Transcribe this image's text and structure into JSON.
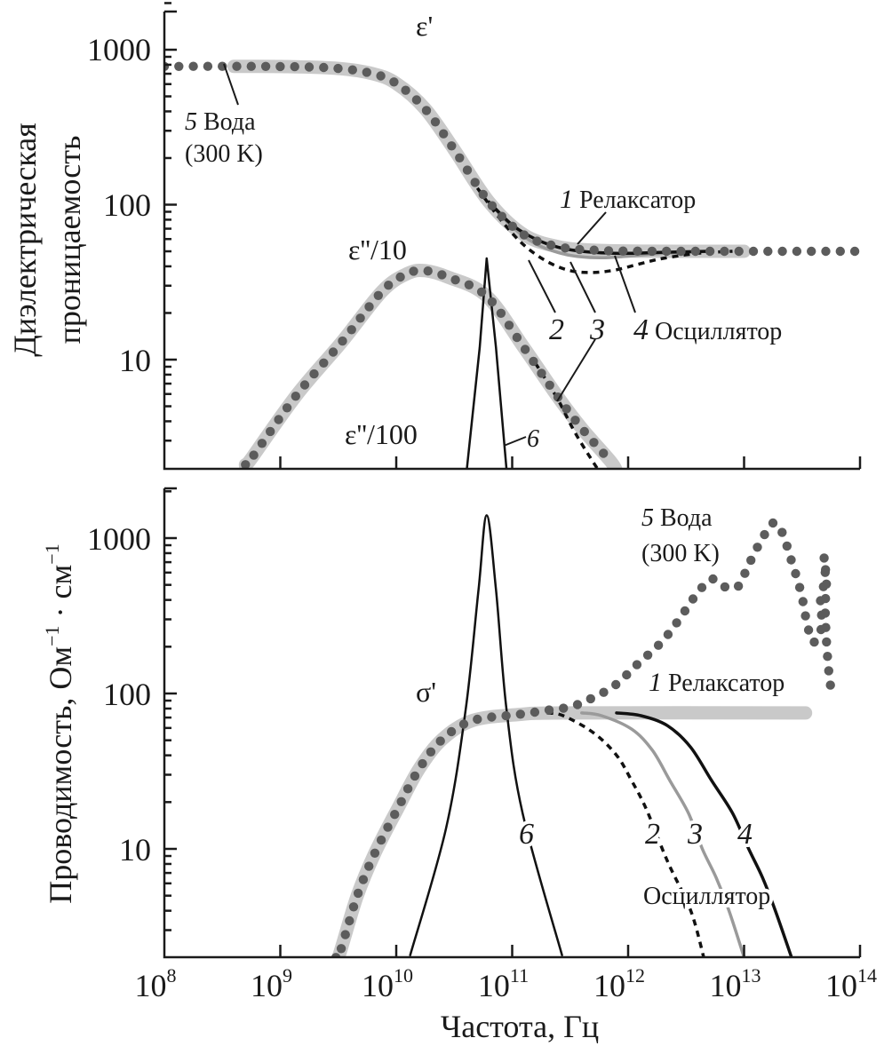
{
  "chart_data": {
    "type": "line",
    "x_scale": "log",
    "xlabel": "Частота, Гц",
    "xlim": [
      100000000.0,
      100000000000000.0
    ],
    "xticks": [
      {
        "base": "10",
        "exp": "8"
      },
      {
        "base": "10",
        "exp": "9"
      },
      {
        "base": "10",
        "exp": "10"
      },
      {
        "base": "10",
        "exp": "11"
      },
      {
        "base": "10",
        "exp": "12"
      },
      {
        "base": "10",
        "exp": "13"
      },
      {
        "base": "10",
        "exp": "14"
      }
    ],
    "panels": [
      {
        "id": "permittivity",
        "ylabel_lines": [
          "Диэлектрическая",
          "проницаемость"
        ],
        "y_scale": "log",
        "ylim": [
          2,
          2100
        ],
        "yticks": [
          "10",
          "100",
          "1000"
        ],
        "annotations": {
          "eps_real": "ε'",
          "eps_imag_10": "ε''/10",
          "eps_imag_100": "ε''/100",
          "water_num": "5",
          "water_name": "Вода",
          "water_temp": "(300 K)",
          "relax_num": "1",
          "relax_name": "Релаксатор",
          "osc2_num": "2",
          "osc3_num": "3",
          "osc4_num": "4",
          "osc_name": "Осциллятор",
          "line6_num": "6"
        },
        "series": [
          {
            "name": "relaxator-eps-real",
            "id": "1",
            "line_style": "thick",
            "color": "#c9c9c9",
            "points": [
              [
                8.6,
                780
              ],
              [
                9,
                779
              ],
              [
                9.5,
                757
              ],
              [
                9.8,
                699
              ],
              [
                10,
                606
              ],
              [
                10.25,
                415
              ],
              [
                10.5,
                226
              ],
              [
                10.8,
                104
              ],
              [
                11.1,
                64
              ],
              [
                11.4,
                53.5
              ],
              [
                11.7,
                50.9
              ],
              [
                12.2,
                50.1
              ],
              [
                13.0,
                50
              ]
            ]
          },
          {
            "name": "relaxator-eps-imag-div10",
            "id": "1",
            "line_style": "thick",
            "color": "#c9c9c9",
            "points": [
              [
                8.7,
                2.1
              ],
              [
                8.75,
                2.3
              ],
              [
                9.14,
                5.9
              ],
              [
                9.53,
                13
              ],
              [
                9.88,
                27.7
              ],
              [
                10.1,
                36
              ],
              [
                10.25,
                37.5
              ],
              [
                10.45,
                34
              ],
              [
                10.78,
                25.7
              ],
              [
                11.1,
                12
              ],
              [
                11.39,
                5.8
              ],
              [
                11.6,
                3.6
              ],
              [
                11.85,
                2.2
              ],
              [
                11.9,
                1.9
              ]
            ]
          },
          {
            "name": "oscillator-2-eps-real",
            "id": "2",
            "line_style": "dashed",
            "color": "#111111",
            "points": [
              [
                10.7,
                128
              ],
              [
                10.9,
                80
              ],
              [
                11.1,
                55
              ],
              [
                11.3,
                43
              ],
              [
                11.5,
                37.5
              ],
              [
                11.7,
                36.5
              ],
              [
                11.9,
                38
              ],
              [
                12.1,
                41.5
              ],
              [
                12.3,
                45
              ],
              [
                12.6,
                48.5
              ],
              [
                12.9,
                50
              ]
            ]
          },
          {
            "name": "oscillator-3-eps-real",
            "id": "3",
            "line_style": "solid",
            "color": "#9a9a9a",
            "points": [
              [
                10.8,
                104
              ],
              [
                11.0,
                72
              ],
              [
                11.2,
                56
              ],
              [
                11.4,
                49
              ],
              [
                11.6,
                46
              ],
              [
                11.8,
                45.5
              ],
              [
                12.0,
                46.5
              ],
              [
                12.3,
                48.5
              ],
              [
                12.7,
                50
              ]
            ]
          },
          {
            "name": "oscillator-4-eps-real",
            "id": "4",
            "line_style": "solid",
            "color": "#111111",
            "points": [
              [
                10.8,
                104
              ],
              [
                11.0,
                74
              ],
              [
                11.2,
                60
              ],
              [
                11.4,
                53
              ],
              [
                11.6,
                50
              ],
              [
                11.8,
                48.8
              ],
              [
                12.0,
                48.5
              ],
              [
                12.3,
                49.3
              ],
              [
                12.7,
                50
              ]
            ]
          },
          {
            "name": "oscillator-2-eps-imag-div10",
            "id": "2",
            "line_style": "dashed",
            "color": "#111111",
            "points": [
              [
                11.2,
                9.5
              ],
              [
                11.39,
                5.6
              ],
              [
                11.55,
                3.3
              ],
              [
                11.75,
                1.9
              ]
            ]
          },
          {
            "name": "water-eps-real",
            "id": "5",
            "line_style": "dotted",
            "color": "#5c5c5c",
            "points": [
              [
                8,
                780
              ],
              [
                9,
                779
              ],
              [
                9.5,
                757
              ],
              [
                9.8,
                699
              ],
              [
                10,
                606
              ],
              [
                10.25,
                415
              ],
              [
                10.5,
                226
              ],
              [
                10.8,
                104
              ],
              [
                11.1,
                64
              ],
              [
                11.4,
                53.5
              ],
              [
                11.7,
                50.9
              ],
              [
                12.2,
                50.1
              ],
              [
                14,
                50
              ]
            ]
          },
          {
            "name": "water-eps-imag-div10",
            "id": "5",
            "line_style": "dotted",
            "color": "#5c5c5c",
            "points": [
              [
                8.7,
                2.1
              ],
              [
                8.75,
                2.3
              ],
              [
                9.14,
                5.9
              ],
              [
                9.53,
                13
              ],
              [
                9.88,
                27.7
              ],
              [
                10.1,
                36
              ],
              [
                10.25,
                37.5
              ],
              [
                10.45,
                34
              ],
              [
                10.78,
                25.7
              ],
              [
                11.1,
                12
              ],
              [
                11.39,
                5.8
              ],
              [
                11.6,
                3.6
              ],
              [
                11.85,
                2.2
              ]
            ]
          },
          {
            "name": "line-6-eps-imag-div100",
            "id": "6",
            "line_style": "thin",
            "color": "#111111",
            "points": [
              [
                10.61,
                2
              ],
              [
                10.72,
                12
              ],
              [
                10.78,
                45
              ],
              [
                10.86,
                12
              ],
              [
                10.95,
                2
              ]
            ]
          }
        ]
      },
      {
        "id": "conductivity",
        "ylabel_parts": {
          "main": "Проводимость, Ом",
          "sup1": "−1",
          "mid": " · см",
          "sup2": "−1"
        },
        "y_scale": "log",
        "ylim": [
          2,
          2100
        ],
        "yticks": [
          "10",
          "100",
          "1000"
        ],
        "annotations": {
          "sigma": "σ'",
          "water_num": "5",
          "water_name": "Вода",
          "water_temp": "(300 K)",
          "relax_num": "1",
          "relax_name": "Релаксатор",
          "osc2_num": "2",
          "osc3_num": "3",
          "osc4_num": "4",
          "osc_name": "Осциллятор",
          "line6_num": "6"
        },
        "series": [
          {
            "name": "relaxator-sigma",
            "id": "1",
            "line_style": "thick",
            "color": "#c9c9c9",
            "points": [
              [
                9.46,
                1.8
              ],
              [
                9.51,
                2.1
              ],
              [
                9.66,
                4.9
              ],
              [
                9.81,
                9.2
              ],
              [
                10.02,
                18.6
              ],
              [
                10.2,
                33
              ],
              [
                10.4,
                51
              ],
              [
                10.66,
                67
              ],
              [
                11.04,
                73
              ],
              [
                11.5,
                75
              ],
              [
                13.53,
                75
              ]
            ]
          },
          {
            "name": "oscillator-2-sigma",
            "id": "2",
            "line_style": "dashed",
            "color": "#111111",
            "points": [
              [
                11.3,
                75
              ],
              [
                11.44,
                72
              ],
              [
                11.7,
                56
              ],
              [
                11.9,
                40
              ],
              [
                12.03,
                27.5
              ],
              [
                12.16,
                17.8
              ],
              [
                12.34,
                8.3
              ],
              [
                12.54,
                4
              ],
              [
                12.66,
                1.9
              ]
            ]
          },
          {
            "name": "oscillator-3-sigma",
            "id": "3",
            "line_style": "solid",
            "color": "#9a9a9a",
            "points": [
              [
                11.6,
                75
              ],
              [
                11.77,
                72
              ],
              [
                12.03,
                59
              ],
              [
                12.21,
                43
              ],
              [
                12.36,
                27.5
              ],
              [
                12.52,
                17
              ],
              [
                12.64,
                10
              ],
              [
                12.76,
                6.5
              ],
              [
                12.87,
                4
              ],
              [
                13.01,
                1.9
              ]
            ]
          },
          {
            "name": "oscillator-4-sigma",
            "id": "4",
            "line_style": "solid",
            "color": "#111111",
            "points": [
              [
                11.9,
                75
              ],
              [
                12.11,
                72
              ],
              [
                12.34,
                62
              ],
              [
                12.54,
                45
              ],
              [
                12.72,
                27.5
              ],
              [
                12.9,
                17
              ],
              [
                13.04,
                10
              ],
              [
                13.16,
                6.5
              ],
              [
                13.27,
                4
              ],
              [
                13.42,
                1.9
              ]
            ]
          },
          {
            "name": "water-sigma",
            "id": "5",
            "line_style": "dotted",
            "color": "#5c5c5c",
            "points": [
              [
                9.48,
                2
              ],
              [
                9.51,
                2.1
              ],
              [
                9.66,
                4.9
              ],
              [
                9.81,
                9.2
              ],
              [
                10.02,
                18.6
              ],
              [
                10.2,
                33
              ],
              [
                10.4,
                51
              ],
              [
                10.66,
                67
              ],
              [
                11.04,
                73
              ],
              [
                11.3,
                78
              ],
              [
                11.5,
                82
              ],
              [
                11.67,
                92
              ],
              [
                11.88,
                112
              ],
              [
                12.08,
                154
              ],
              [
                12.29,
                215
              ],
              [
                12.44,
                300
              ],
              [
                12.58,
                425
              ],
              [
                12.72,
                545
              ],
              [
                12.85,
                480
              ],
              [
                12.95,
                490
              ],
              [
                13.03,
                650
              ],
              [
                13.13,
                915
              ],
              [
                13.25,
                1250
              ],
              [
                13.33,
                1080
              ],
              [
                13.41,
                710
              ],
              [
                13.49,
                450
              ],
              [
                13.54,
                290
              ],
              [
                13.59,
                215
              ],
              [
                13.65,
                240
              ],
              [
                13.67,
                290
              ],
              [
                13.66,
                420
              ],
              [
                13.7,
                540
              ],
              [
                13.69,
                760
              ],
              [
                13.71,
                520
              ],
              [
                13.7,
                340
              ],
              [
                13.72,
                170
              ],
              [
                13.75,
                105
              ]
            ]
          },
          {
            "name": "line-6-sigma",
            "id": "6",
            "line_style": "thin",
            "color": "#111111",
            "points": [
              [
                10.12,
                2.07
              ],
              [
                10.43,
                13.6
              ],
              [
                10.6,
                80
              ],
              [
                10.71,
                470
              ],
              [
                10.78,
                1400
              ],
              [
                10.86,
                470
              ],
              [
                10.95,
                80
              ],
              [
                11.09,
                17
              ],
              [
                11.43,
                2.07
              ]
            ]
          }
        ]
      }
    ]
  }
}
